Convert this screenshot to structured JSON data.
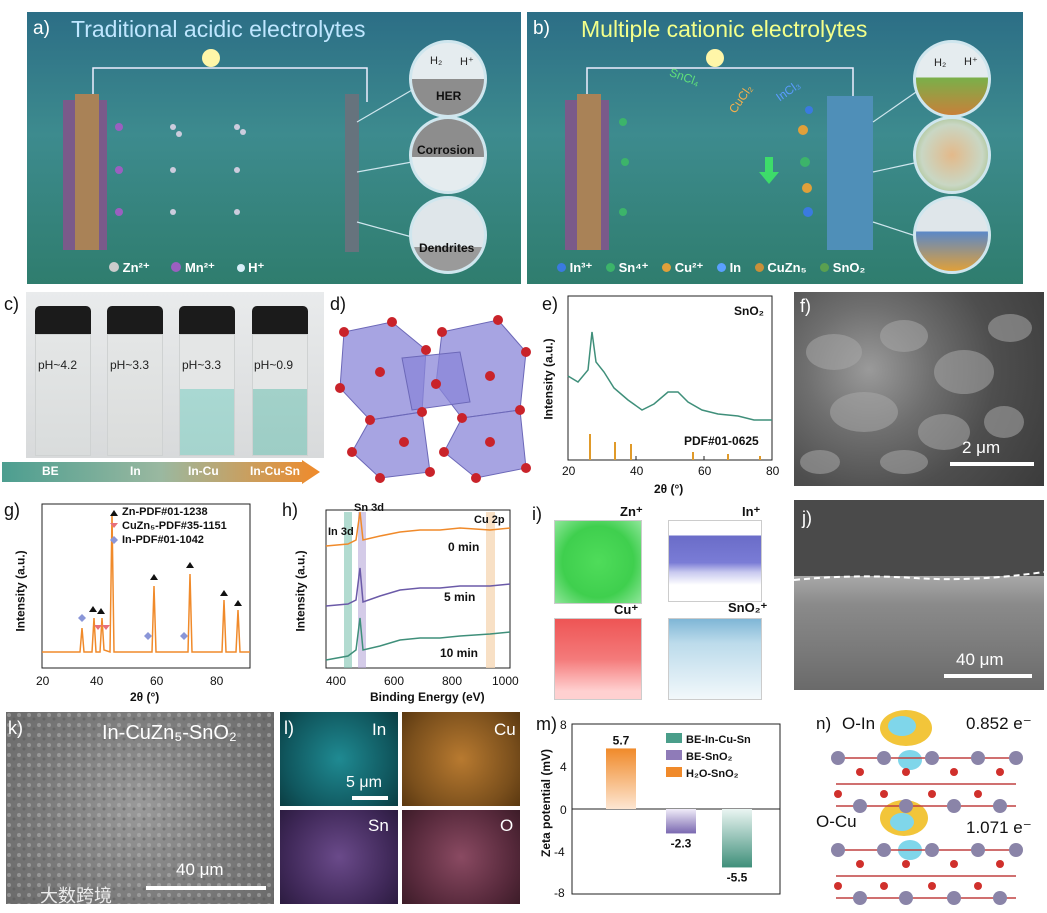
{
  "panel_a": {
    "label": "a)",
    "title": "Traditional acidic electrolytes",
    "bubbles": [
      "HER",
      "Corrosion",
      "Dendrites"
    ],
    "gas": [
      "H₂",
      "H⁺"
    ],
    "legend": [
      "Zn²⁺",
      "Mn²⁺",
      "H⁺"
    ]
  },
  "panel_b": {
    "label": "b)",
    "title": "Multiple cationic electrolytes",
    "salts": [
      "SnCl₄",
      "CuCl₂",
      "InCl₃"
    ],
    "gas": [
      "H₂",
      "H⁺"
    ],
    "legend": [
      "In³⁺",
      "Sn⁴⁺",
      "Cu²⁺",
      "In",
      "CuZn₅",
      "SnO₂"
    ]
  },
  "panel_c": {
    "label": "c)",
    "vials": [
      "pH~4.2",
      "pH~3.3",
      "pH~3.3",
      "pH~0.9"
    ],
    "arrow": [
      "BE",
      "In",
      "In-Cu",
      "In-Cu-Sn"
    ]
  },
  "panel_d": {
    "label": "d)"
  },
  "panel_e": {
    "label": "e)",
    "name": "SnO₂",
    "ref": "PDF#01-0625",
    "ylabel": "Intensity (a.u.)",
    "xlabel": "2θ (°)",
    "xticks": [
      "20",
      "40",
      "60",
      "80"
    ]
  },
  "panel_f": {
    "label": "f)",
    "scale": "2 μm"
  },
  "panel_g": {
    "label": "g)",
    "legend": [
      "Zn-PDF#01-1238",
      "CuZn₅-PDF#35-1151",
      "In-PDF#01-1042"
    ],
    "ylabel": "Intensity (a.u.)",
    "xlabel": "2θ (°)",
    "xticks": [
      "20",
      "40",
      "60",
      "80"
    ]
  },
  "panel_h": {
    "label": "h)",
    "marks": [
      "Sn 3d",
      "In 3d",
      "Cu 2p"
    ],
    "curves": [
      "0 min",
      "5 min",
      "10 min"
    ],
    "ylabel": "Intensity (a.u.)",
    "xlabel": "Binding Energy (eV)",
    "xticks": [
      "400",
      "600",
      "800",
      "1000"
    ]
  },
  "panel_i": {
    "label": "i)",
    "ions": [
      "Zn⁺",
      "In⁺",
      "Cu⁺",
      "SnO₂⁺"
    ]
  },
  "panel_j": {
    "label": "j)",
    "scale": "40 μm"
  },
  "panel_k": {
    "label": "k)",
    "title": "In-CuZn₅-SnO₂",
    "scale": "40 μm"
  },
  "panel_l": {
    "label": "l)",
    "maps": [
      "In",
      "Cu",
      "Sn",
      "O"
    ],
    "scale": "5 μm"
  },
  "panel_m": {
    "label": "m)"
  },
  "panel_n": {
    "label": "n)",
    "rows": [
      {
        "name": "O-In",
        "charge": "0.852 e⁻"
      },
      {
        "name": "O-Cu",
        "charge": "1.071 e⁻"
      }
    ]
  },
  "watermark": "大数跨境",
  "chart_data": {
    "type": "bar",
    "categories": [
      "H₂O-SnO₂",
      "BE-SnO₂",
      "BE-In-Cu-Sn"
    ],
    "values": [
      5.7,
      -2.3,
      -5.5
    ],
    "value_labels": [
      "5.7",
      "-2.3",
      "-5.5"
    ],
    "ylabel": "Zeta potential (mV)",
    "yticks": [
      "8",
      "4",
      "0",
      "-4",
      "-8"
    ],
    "ylim": [
      -8,
      8
    ],
    "legend": [
      "BE-In-Cu-Sn",
      "BE-SnO₂",
      "H₂O-SnO₂"
    ],
    "colors": {
      "H₂O-SnO₂": "#f0883a",
      "BE-SnO₂": "#8f7bb8",
      "BE-In-Cu-Sn": "#4a9e8a"
    }
  }
}
